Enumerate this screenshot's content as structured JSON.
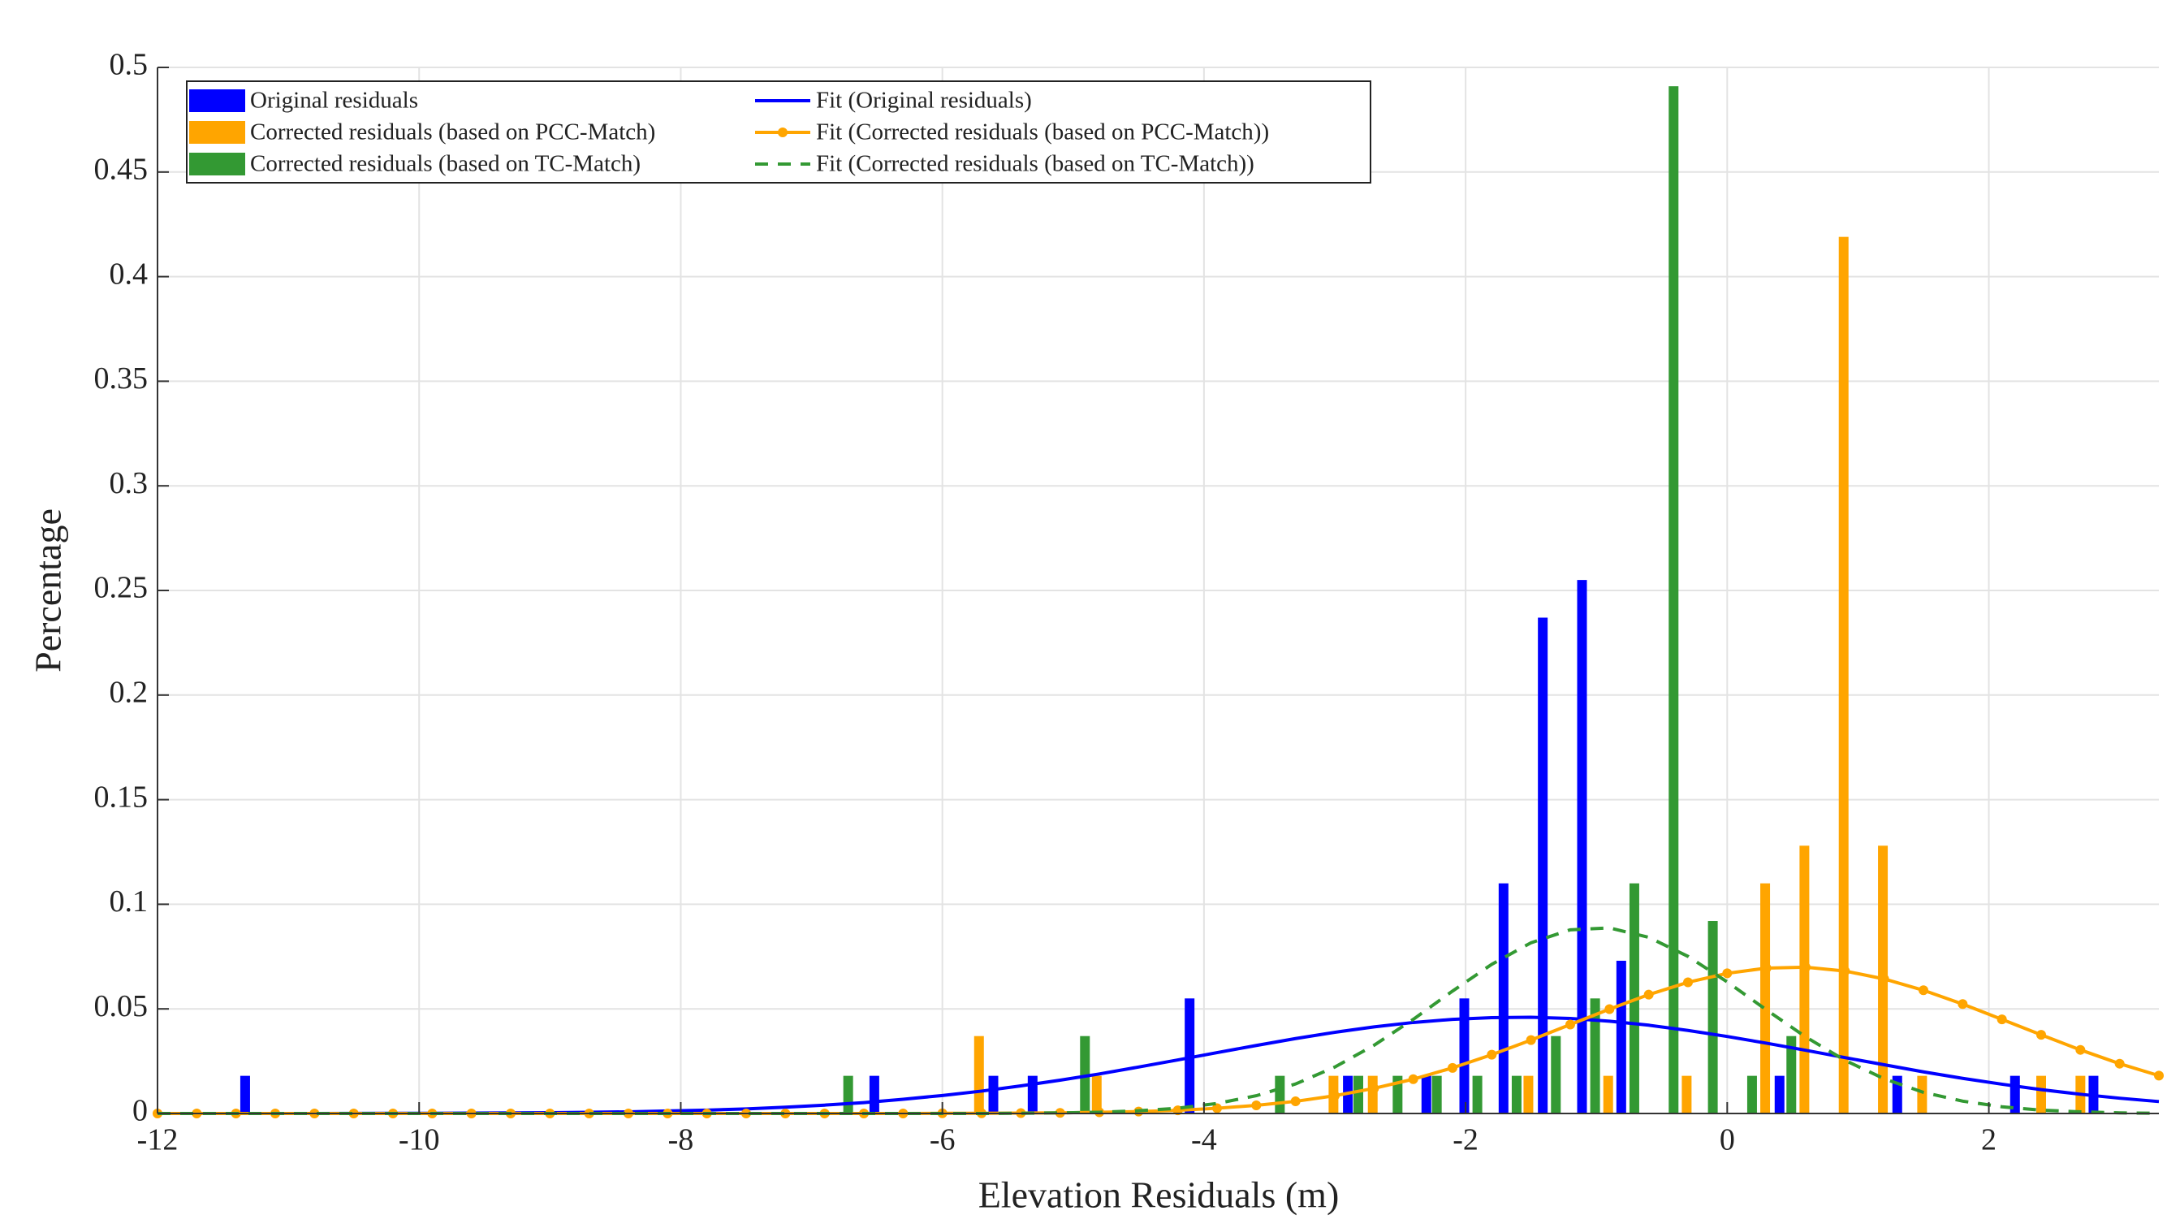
{
  "chart_data": {
    "type": "bar",
    "xlabel": "Elevation Residuals (m)",
    "ylabel": "Percentage",
    "xlim": [
      -12,
      3.3
    ],
    "ylim": [
      0,
      0.5
    ],
    "xticks": [
      -12,
      -10,
      -8,
      -6,
      -4,
      -2,
      0,
      2
    ],
    "yticks": [
      0,
      0.05,
      0.1,
      0.15,
      0.2,
      0.25,
      0.3,
      0.35,
      0.4,
      0.45,
      0.5
    ],
    "grid": true,
    "legend": "upper left",
    "x": [
      -12,
      -11.7,
      -11.4,
      -11.1,
      -10.8,
      -10.5,
      -10.2,
      -9.9,
      -9.6,
      -9.3,
      -9,
      -8.7,
      -8.4,
      -8.1,
      -7.8,
      -7.5,
      -7.2,
      -6.9,
      -6.6,
      -6.3,
      -6,
      -5.7,
      -5.4,
      -5.1,
      -4.8,
      -4.5,
      -4.2,
      -3.9,
      -3.6,
      -3.3,
      -3,
      -2.7,
      -2.4,
      -2.1,
      -1.8,
      -1.5,
      -1.2,
      -0.9,
      -0.6,
      -0.3,
      0,
      0.3,
      0.6,
      0.9,
      1.2,
      1.5,
      1.8,
      2.1,
      2.4,
      2.7,
      3,
      3.3
    ],
    "series": [
      {
        "name": "Original residuals",
        "kind": "bar",
        "color": "#0000ff",
        "x": [
          -11.33,
          -6.52,
          -5.61,
          -5.31,
          -4.11,
          -2.9,
          -2.3,
          -2.01,
          -1.71,
          -1.41,
          -1.11,
          -0.81,
          0.4,
          1.3,
          2.2,
          2.8
        ],
        "values": [
          0.018,
          0.018,
          0.018,
          0.018,
          0.055,
          0.018,
          0.018,
          0.055,
          0.11,
          0.237,
          0.255,
          0.073,
          0.018,
          0.018,
          0.018,
          0.018
        ]
      },
      {
        "name": "Corrected residuals (based on PCC-Match)",
        "kind": "bar",
        "color": "#ffa500",
        "x": [
          -5.72,
          -4.82,
          -3.01,
          -2.71,
          -1.52,
          -0.91,
          -0.31,
          0.29,
          0.59,
          0.89,
          1.19,
          1.49,
          2.4,
          2.7
        ],
        "values": [
          0.037,
          0.018,
          0.018,
          0.018,
          0.018,
          0.018,
          0.018,
          0.11,
          0.128,
          0.419,
          0.128,
          0.018,
          0.018,
          0.018
        ]
      },
      {
        "name": "Corrected residuals (based on TC-Match)",
        "kind": "bar",
        "color": "#339933",
        "x": [
          -6.72,
          -4.91,
          -3.42,
          -2.82,
          -2.52,
          -2.22,
          -1.91,
          -1.61,
          -1.31,
          -1.01,
          -0.71,
          -0.41,
          -0.11,
          0.19,
          0.49
        ],
        "values": [
          0.018,
          0.037,
          0.018,
          0.018,
          0.018,
          0.018,
          0.018,
          0.018,
          0.037,
          0.055,
          0.11,
          0.491,
          0.092,
          0.018,
          0.037
        ]
      },
      {
        "name": "Fit (Original residuals)",
        "kind": "line",
        "color": "#0000ff",
        "dashed": false,
        "markers": false,
        "values": [
          0,
          0,
          0,
          0,
          0,
          5e-05,
          0.0001,
          0.0001,
          0.0002,
          0.0003,
          0.0004,
          0.0006,
          0.0008,
          0.0012,
          0.0016,
          0.0022,
          0.003,
          0.004,
          0.0052,
          0.0068,
          0.0086,
          0.0107,
          0.0132,
          0.0159,
          0.0189,
          0.0222,
          0.0256,
          0.0291,
          0.0325,
          0.0358,
          0.0388,
          0.0414,
          0.0435,
          0.045,
          0.0458,
          0.046,
          0.0454,
          0.0441,
          0.0422,
          0.0397,
          0.0368,
          0.0336,
          0.0302,
          0.0267,
          0.0233,
          0.0199,
          0.0168,
          0.014,
          0.0114,
          0.0092,
          0.0073,
          0.0057
        ]
      },
      {
        "name": "Fit (Corrected residuals (based on PCC-Match))",
        "kind": "line",
        "color": "#ffa500",
        "dashed": false,
        "markers": true,
        "values": [
          0,
          0,
          0,
          0,
          0,
          0,
          0,
          0,
          0,
          0,
          0,
          0,
          0,
          0,
          0,
          0,
          0,
          0,
          0,
          0,
          0.0001,
          0.0001,
          0.0002,
          0.0003,
          0.0006,
          0.0009,
          0.0015,
          0.0025,
          0.0039,
          0.0058,
          0.0085,
          0.012,
          0.0164,
          0.0218,
          0.0281,
          0.0351,
          0.0425,
          0.0499,
          0.0568,
          0.0627,
          0.067,
          0.0695,
          0.0699,
          0.0681,
          0.0643,
          0.0589,
          0.0523,
          0.045,
          0.0376,
          0.0304,
          0.0238,
          0.0181
        ]
      },
      {
        "name": "Fit (Corrected residuals (based on TC-Match))",
        "kind": "line",
        "color": "#339933",
        "dashed": true,
        "markers": false,
        "values": [
          0,
          0,
          0,
          0,
          0,
          0,
          0,
          0,
          0,
          0,
          0,
          0,
          0,
          0,
          0,
          0,
          0,
          0,
          0,
          0,
          0,
          0,
          0.0001,
          0.0003,
          0.0006,
          0.0013,
          0.0025,
          0.0048,
          0.0085,
          0.0141,
          0.0222,
          0.0326,
          0.045,
          0.0585,
          0.0713,
          0.0816,
          0.0878,
          0.0887,
          0.0842,
          0.0751,
          0.0629,
          0.0495,
          0.0366,
          0.0254,
          0.0166,
          0.0101,
          0.0059,
          0.0032,
          0.0016,
          0.0008,
          0.0003,
          0.0001
        ]
      }
    ]
  }
}
